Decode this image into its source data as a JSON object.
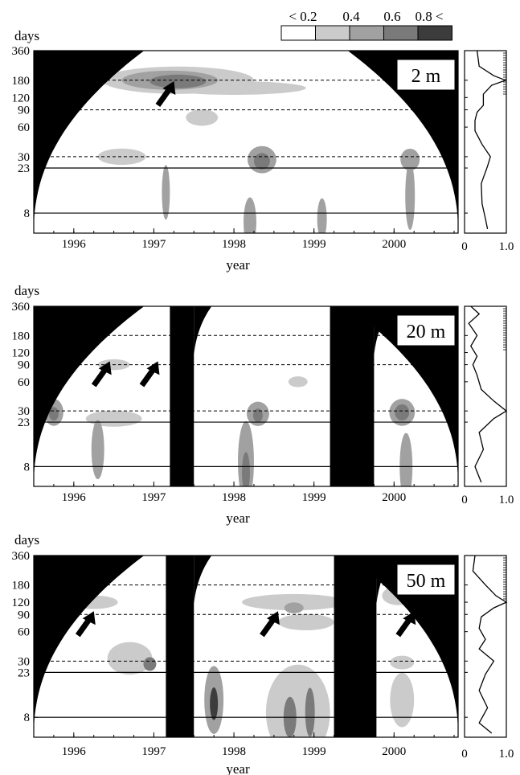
{
  "legend": {
    "labels": [
      "< 0.2",
      "0.4",
      "0.6",
      "0.8 <"
    ],
    "colors": [
      "#ffffff",
      "#cbcbcb",
      "#a1a1a1",
      "#7a7a7a",
      "#3c3c3c"
    ]
  },
  "chart_data": [
    {
      "type": "heatmap",
      "depth_label": "2 m",
      "ylabel": "days",
      "xlabel": "year",
      "x_ticks": [
        "1996",
        "1997",
        "1998",
        "1999",
        "2000"
      ],
      "y_ticks": [
        "360",
        "180",
        "120",
        "90",
        "60",
        "30",
        "23",
        "8"
      ],
      "xlim": [
        1995.5,
        2000.8
      ],
      "ylim_days": [
        5,
        360
      ],
      "y_scale": "log",
      "gaps": [],
      "dashed_periods": [
        180,
        90,
        30
      ],
      "solid_periods": [
        23,
        8
      ],
      "side_panel": {
        "x_ticks": [
          "0",
          "1.0"
        ],
        "xlim": [
          0,
          1
        ],
        "profile": [
          {
            "period": 360,
            "value": 0.3
          },
          {
            "period": 250,
            "value": 0.35
          },
          {
            "period": 200,
            "value": 0.7
          },
          {
            "period": 180,
            "value": 0.98
          },
          {
            "period": 160,
            "value": 0.65
          },
          {
            "period": 130,
            "value": 0.45
          },
          {
            "period": 100,
            "value": 0.45
          },
          {
            "period": 85,
            "value": 0.3
          },
          {
            "period": 70,
            "value": 0.25
          },
          {
            "period": 55,
            "value": 0.25
          },
          {
            "period": 40,
            "value": 0.42
          },
          {
            "period": 30,
            "value": 0.62
          },
          {
            "period": 24,
            "value": 0.55
          },
          {
            "period": 16,
            "value": 0.4
          },
          {
            "period": 10,
            "value": 0.42
          },
          {
            "period": 7,
            "value": 0.5
          },
          {
            "period": 5.5,
            "value": 0.55
          }
        ]
      },
      "arrows": [
        {
          "x": 1997.05,
          "period": 100
        }
      ],
      "blobs": [
        {
          "x": 1997.3,
          "period": 180,
          "rx": 0.95,
          "ry": 0.1,
          "level": 1
        },
        {
          "x": 1998.0,
          "period": 150,
          "rx": 0.9,
          "ry": 0.05,
          "level": 1
        },
        {
          "x": 1997.2,
          "period": 180,
          "rx": 0.6,
          "ry": 0.07,
          "level": 2
        },
        {
          "x": 1997.3,
          "period": 175,
          "rx": 0.35,
          "ry": 0.05,
          "level": 3
        },
        {
          "x": 1997.6,
          "period": 75,
          "rx": 0.2,
          "ry": 0.06,
          "level": 1
        },
        {
          "x": 1996.6,
          "period": 30,
          "rx": 0.3,
          "ry": 0.06,
          "level": 1
        },
        {
          "x": 1998.35,
          "period": 28,
          "rx": 0.18,
          "ry": 0.1,
          "level": 2
        },
        {
          "x": 1998.35,
          "period": 27,
          "rx": 0.1,
          "ry": 0.06,
          "level": 3
        },
        {
          "x": 2000.2,
          "period": 28,
          "rx": 0.12,
          "ry": 0.08,
          "level": 2
        },
        {
          "x": 1997.15,
          "period": 13,
          "rx": 0.05,
          "ry": 0.2,
          "level": 2
        },
        {
          "x": 1998.2,
          "period": 6.5,
          "rx": 0.08,
          "ry": 0.18,
          "level": 2
        },
        {
          "x": 1999.1,
          "period": 7,
          "rx": 0.06,
          "ry": 0.15,
          "level": 2
        },
        {
          "x": 2000.2,
          "period": 12,
          "rx": 0.06,
          "ry": 0.25,
          "level": 2
        }
      ]
    },
    {
      "type": "heatmap",
      "depth_label": "20 m",
      "ylabel": "days",
      "xlabel": "year",
      "x_ticks": [
        "1996",
        "1997",
        "1998",
        "1999",
        "2000"
      ],
      "y_ticks": [
        "360",
        "180",
        "120",
        "90",
        "60",
        "30",
        "23",
        "8"
      ],
      "xlim": [
        1995.5,
        2000.8
      ],
      "ylim_days": [
        5,
        360
      ],
      "y_scale": "log",
      "gaps": [
        [
          1997.2,
          1997.5
        ],
        [
          1999.2,
          1999.75
        ]
      ],
      "dashed_periods": [
        180,
        90,
        30
      ],
      "solid_periods": [
        23,
        8
      ],
      "side_panel": {
        "x_ticks": [
          "0",
          "1.0"
        ],
        "xlim": [
          0,
          1
        ],
        "profile": [
          {
            "period": 360,
            "value": 0.15
          },
          {
            "period": 300,
            "value": 0.35
          },
          {
            "period": 240,
            "value": 0.1
          },
          {
            "period": 180,
            "value": 0.3
          },
          {
            "period": 140,
            "value": 0.15
          },
          {
            "period": 110,
            "value": 0.3
          },
          {
            "period": 90,
            "value": 0.2
          },
          {
            "period": 70,
            "value": 0.3
          },
          {
            "period": 50,
            "value": 0.4
          },
          {
            "period": 38,
            "value": 0.7
          },
          {
            "period": 30,
            "value": 1.0
          },
          {
            "period": 25,
            "value": 0.7
          },
          {
            "period": 18,
            "value": 0.35
          },
          {
            "period": 12,
            "value": 0.45
          },
          {
            "period": 8,
            "value": 0.25
          },
          {
            "period": 5.5,
            "value": 0.4
          }
        ]
      },
      "arrows": [
        {
          "x": 1996.25,
          "period": 55
        },
        {
          "x": 1996.85,
          "period": 55
        }
      ],
      "blobs": [
        {
          "x": 1996.5,
          "period": 90,
          "rx": 0.2,
          "ry": 0.04,
          "level": 1
        },
        {
          "x": 1995.75,
          "period": 29,
          "rx": 0.12,
          "ry": 0.1,
          "level": 2
        },
        {
          "x": 1995.75,
          "period": 28,
          "rx": 0.06,
          "ry": 0.05,
          "level": 3
        },
        {
          "x": 1996.5,
          "period": 25,
          "rx": 0.35,
          "ry": 0.06,
          "level": 1
        },
        {
          "x": 1998.3,
          "period": 28,
          "rx": 0.14,
          "ry": 0.09,
          "level": 2
        },
        {
          "x": 1998.3,
          "period": 27,
          "rx": 0.06,
          "ry": 0.05,
          "level": 3
        },
        {
          "x": 2000.1,
          "period": 29,
          "rx": 0.16,
          "ry": 0.1,
          "level": 2
        },
        {
          "x": 2000.1,
          "period": 29,
          "rx": 0.09,
          "ry": 0.06,
          "level": 3
        },
        {
          "x": 1996.3,
          "period": 12,
          "rx": 0.08,
          "ry": 0.22,
          "level": 2
        },
        {
          "x": 1998.15,
          "period": 9,
          "rx": 0.1,
          "ry": 0.3,
          "level": 2
        },
        {
          "x": 1998.15,
          "period": 7,
          "rx": 0.05,
          "ry": 0.15,
          "level": 3
        },
        {
          "x": 2000.15,
          "period": 8,
          "rx": 0.08,
          "ry": 0.25,
          "level": 2
        },
        {
          "x": 1998.8,
          "period": 60,
          "rx": 0.12,
          "ry": 0.04,
          "level": 1
        }
      ]
    },
    {
      "type": "heatmap",
      "depth_label": "50 m",
      "ylabel": "days",
      "xlabel": "year",
      "x_ticks": [
        "1996",
        "1997",
        "1998",
        "1999",
        "2000"
      ],
      "y_ticks": [
        "360",
        "180",
        "120",
        "90",
        "60",
        "30",
        "23",
        "8"
      ],
      "xlim": [
        1995.5,
        2000.8
      ],
      "ylim_days": [
        5,
        360
      ],
      "y_scale": "log",
      "gaps": [
        [
          1997.15,
          1997.5
        ],
        [
          1999.25,
          1999.78
        ]
      ],
      "dashed_periods": [
        180,
        90,
        30
      ],
      "solid_periods": [
        23,
        8
      ],
      "side_panel": {
        "x_ticks": [
          "0",
          "1.0"
        ],
        "xlim": [
          0,
          1
        ],
        "profile": [
          {
            "period": 360,
            "value": 0.25
          },
          {
            "period": 250,
            "value": 0.2
          },
          {
            "period": 180,
            "value": 0.5
          },
          {
            "period": 140,
            "value": 0.75
          },
          {
            "period": 120,
            "value": 1.0
          },
          {
            "period": 105,
            "value": 0.7
          },
          {
            "period": 85,
            "value": 0.4
          },
          {
            "period": 65,
            "value": 0.35
          },
          {
            "period": 50,
            "value": 0.5
          },
          {
            "period": 40,
            "value": 0.35
          },
          {
            "period": 30,
            "value": 0.7
          },
          {
            "period": 22,
            "value": 0.5
          },
          {
            "period": 15,
            "value": 0.35
          },
          {
            "period": 10,
            "value": 0.55
          },
          {
            "period": 7,
            "value": 0.35
          },
          {
            "period": 5.5,
            "value": 0.65
          }
        ]
      },
      "arrows": [
        {
          "x": 1996.05,
          "period": 55
        },
        {
          "x": 1998.35,
          "period": 55
        },
        {
          "x": 2000.05,
          "period": 55
        }
      ],
      "blobs": [
        {
          "x": 1996.25,
          "period": 120,
          "rx": 0.3,
          "ry": 0.05,
          "level": 1
        },
        {
          "x": 1998.75,
          "period": 120,
          "rx": 0.65,
          "ry": 0.06,
          "level": 1
        },
        {
          "x": 1998.75,
          "period": 105,
          "rx": 0.12,
          "ry": 0.04,
          "level": 2
        },
        {
          "x": 1998.9,
          "period": 75,
          "rx": 0.35,
          "ry": 0.06,
          "level": 1
        },
        {
          "x": 2000.05,
          "period": 140,
          "rx": 0.2,
          "ry": 0.07,
          "level": 1
        },
        {
          "x": 1995.7,
          "period": 50,
          "rx": 0.1,
          "ry": 0.07,
          "level": 2
        },
        {
          "x": 1996.7,
          "period": 32,
          "rx": 0.28,
          "ry": 0.12,
          "level": 1
        },
        {
          "x": 1996.95,
          "period": 28,
          "rx": 0.08,
          "ry": 0.05,
          "level": 3
        },
        {
          "x": 1997.75,
          "period": 12,
          "rx": 0.12,
          "ry": 0.25,
          "level": 2
        },
        {
          "x": 1997.75,
          "period": 11,
          "rx": 0.05,
          "ry": 0.12,
          "level": 4
        },
        {
          "x": 1998.8,
          "period": 9,
          "rx": 0.4,
          "ry": 0.35,
          "level": 1
        },
        {
          "x": 1998.7,
          "period": 8,
          "rx": 0.08,
          "ry": 0.15,
          "level": 3
        },
        {
          "x": 1998.95,
          "period": 9,
          "rx": 0.06,
          "ry": 0.18,
          "level": 3
        },
        {
          "x": 2000.1,
          "period": 29,
          "rx": 0.15,
          "ry": 0.05,
          "level": 1
        },
        {
          "x": 2000.1,
          "period": 12,
          "rx": 0.15,
          "ry": 0.2,
          "level": 1
        }
      ]
    }
  ]
}
